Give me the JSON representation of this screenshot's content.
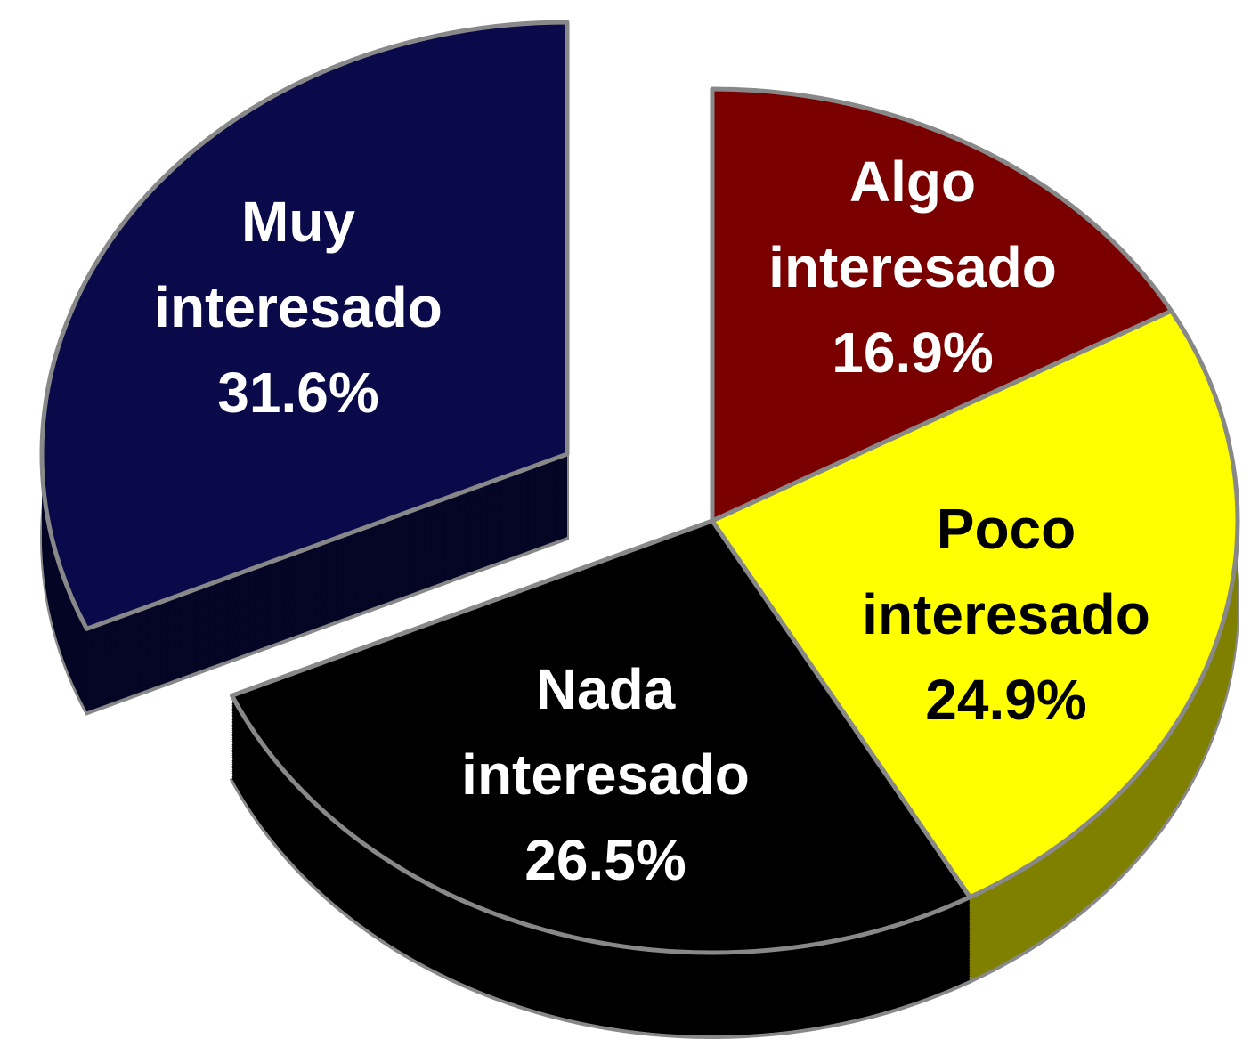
{
  "chart_data": {
    "type": "pie",
    "categories": [
      "Algo interesado",
      "Poco interesado",
      "Nada interesado",
      "Muy interesado"
    ],
    "values": [
      16.9,
      24.9,
      26.5,
      31.6
    ],
    "value_labels": [
      "16.9%",
      "24.9%",
      "26.5%",
      "31.6%"
    ],
    "colors": [
      "#7a0000",
      "#ffff00",
      "#000000",
      "#0a0a4a"
    ]
  }
}
